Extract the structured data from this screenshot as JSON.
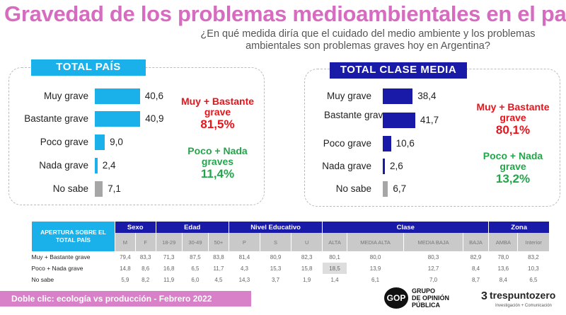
{
  "title": "Gravedad de los problemas medioambientales en el país",
  "subtitle": "¿En qué medida diría que el cuidado del medio ambiente y los problemas ambientales son problemas graves hoy en Argentina?",
  "colors": {
    "title": "#d66cc0",
    "pais_bar": "#1ab0ea",
    "media_bar": "#1a1aa8",
    "nosabe_bar": "#a6a6a6",
    "red": "#e8141b",
    "green": "#22a64a"
  },
  "total_pais": {
    "label": "TOTAL PAÍS",
    "rows": [
      {
        "label": "Muy grave",
        "value": "40,6",
        "v": 40.6
      },
      {
        "label": "Bastante grave",
        "value": "40,9",
        "v": 40.9
      },
      {
        "label": "Poco grave",
        "value": "9,0",
        "v": 9.0
      },
      {
        "label": "Nada grave",
        "value": "2,4",
        "v": 2.4
      },
      {
        "label": "No sabe",
        "value": "7,1",
        "v": 7.1
      }
    ],
    "sum1_label": "Muy + Bastante grave",
    "sum1_value": "81,5%",
    "sum2_label": "Poco + Nada graves",
    "sum2_value": "11,4%"
  },
  "total_media": {
    "label": "TOTAL CLASE MEDIA",
    "rows": [
      {
        "label": "Muy grave",
        "value": "38,4",
        "v": 38.4
      },
      {
        "label": "Bastante grave",
        "value": "41,7",
        "v": 41.7
      },
      {
        "label": "Poco grave",
        "value": "10,6",
        "v": 10.6
      },
      {
        "label": "Nada grave",
        "value": "2,6",
        "v": 2.6
      },
      {
        "label": "No sabe",
        "value": "6,7",
        "v": 6.7
      }
    ],
    "sum1_label": "Muy + Bastante grave",
    "sum1_value": "80,1%",
    "sum2_label": "Poco + Nada grave",
    "sum2_value": "13,2%"
  },
  "table": {
    "corner": "APERTURA SOBRE EL TOTAL PAÍS",
    "groups": [
      {
        "label": "Sexo",
        "span": 2
      },
      {
        "label": "Edad",
        "span": 3
      },
      {
        "label": "Nivel Educativo",
        "span": 3
      },
      {
        "label": "Clase",
        "span": 4
      },
      {
        "label": "Zona",
        "span": 2
      }
    ],
    "columns": [
      "M",
      "F",
      "18-29",
      "30-49",
      "50+",
      "P",
      "S",
      "U",
      "ALTA",
      "MEDIA ALTA",
      "MEDIA BAJA",
      "BAJA",
      "AMBA",
      "Interior"
    ],
    "rows": [
      {
        "label": "Muy + Bastante grave",
        "values": [
          "79,4",
          "83,3",
          "71,3",
          "87,5",
          "83,8",
          "81,4",
          "80,9",
          "82,3",
          "80,1",
          "80,0",
          "80,3",
          "82,9",
          "78,0",
          "83,2"
        ]
      },
      {
        "label": "Poco + Nada grave",
        "values": [
          "14,8",
          "8,6",
          "16,8",
          "6,5",
          "11,7",
          "4,3",
          "15,3",
          "15,8",
          "18,5",
          "13,9",
          "12,7",
          "8,4",
          "13,6",
          "10,3"
        ],
        "highlight": 8
      },
      {
        "label": "No sabe",
        "values": [
          "5,9",
          "8,2",
          "11,9",
          "6,0",
          "4,5",
          "14,3",
          "3,7",
          "1,9",
          "1,4",
          "6,1",
          "7,0",
          "8,7",
          "8,4",
          "6,5"
        ]
      }
    ]
  },
  "footer": "Doble clic: ecología vs producción - Febrero 2022",
  "logos": {
    "gop": "GRUPO DE OPINIÓN PÚBLICA",
    "tres": "trespuntozero",
    "tres_sub": "Investigación + Comunicación"
  }
}
